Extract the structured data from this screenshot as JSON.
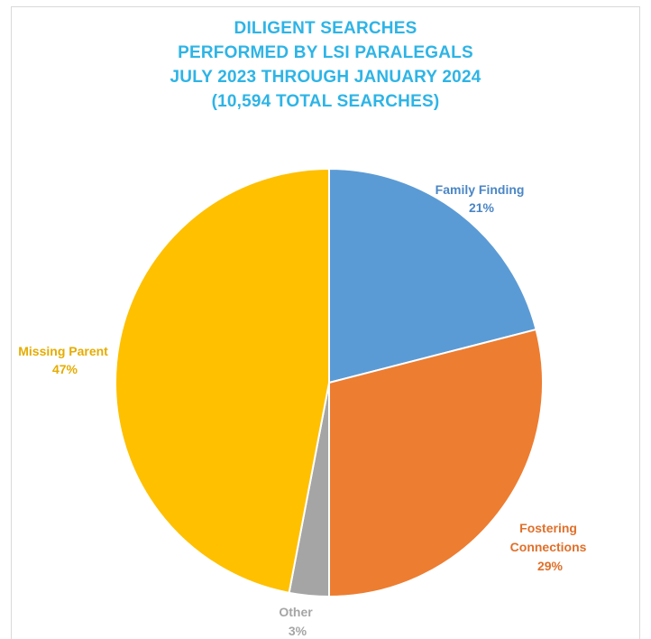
{
  "chart_data": {
    "type": "pie",
    "title_lines": [
      "DILIGENT SEARCHES",
      "PERFORMED BY LSI PARALEGALS",
      "JULY 2023 THROUGH JANUARY 2024",
      "(10,594 TOTAL SEARCHES)"
    ],
    "slices": [
      {
        "label": "Family Finding",
        "value": 21,
        "value_label": "21%",
        "color": "#5b9bd5"
      },
      {
        "label": "Fostering Connections",
        "label_lines": [
          "Fostering",
          "Connections"
        ],
        "value": 29,
        "value_label": "29%",
        "color": "#ed7d31"
      },
      {
        "label": "Other",
        "value": 3,
        "value_label": "3%",
        "color": "#a5a5a5"
      },
      {
        "label": "Missing Parent",
        "value": 47,
        "value_label": "47%",
        "color": "#ffc000"
      }
    ],
    "start": "12 o'clock",
    "direction": "clockwise",
    "title_color": "#2eb4e6",
    "legend": "none"
  }
}
